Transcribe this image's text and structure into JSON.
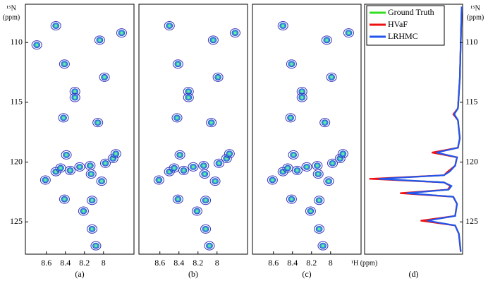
{
  "chart_data": [
    {
      "type": "contour",
      "label": "(a)",
      "xlim": [
        8.82,
        7.68
      ],
      "ylim": [
        106.8,
        127.7
      ],
      "xticks": [
        8.6,
        8.4,
        8.2,
        8
      ],
      "yticks": [
        110,
        115,
        120,
        125
      ],
      "ylabel": [
        "¹⁵N",
        "(ppm)"
      ],
      "x": [
        8.5,
        7.81,
        8.04,
        8.7,
        8.41,
        7.99,
        8.3,
        8.3,
        8.42,
        8.06,
        8.39,
        8.14,
        8.13,
        8.61,
        8.5,
        8.45,
        8.35,
        8.25,
        7.98,
        7.9,
        7.87,
        8.02,
        8.41,
        8.21,
        8.12,
        8.12,
        8.08
      ],
      "y": [
        108.6,
        109.2,
        109.8,
        110.2,
        111.8,
        112.9,
        114.1,
        114.6,
        116.3,
        116.7,
        119.4,
        120.3,
        121.0,
        121.5,
        120.8,
        120.5,
        120.7,
        120.4,
        120.1,
        119.7,
        119.3,
        121.6,
        123.1,
        124.1,
        123.2,
        125.6,
        127.0
      ]
    },
    {
      "type": "contour",
      "label": "(b)",
      "xlim": [
        8.82,
        7.68
      ],
      "ylim": [
        106.8,
        127.7
      ],
      "xticks": [
        8.6,
        8.4,
        8.2,
        8
      ],
      "x": [
        8.5,
        7.81,
        8.04,
        8.41,
        7.99,
        8.3,
        8.3,
        8.42,
        8.06,
        8.39,
        8.14,
        8.13,
        8.61,
        8.5,
        8.45,
        8.35,
        8.25,
        7.98,
        7.9,
        7.87,
        8.02,
        8.41,
        8.21,
        8.12,
        8.12,
        8.08
      ],
      "y": [
        108.6,
        109.2,
        109.8,
        111.8,
        112.9,
        114.1,
        114.6,
        116.3,
        116.7,
        119.4,
        120.3,
        121.0,
        121.5,
        120.8,
        120.5,
        120.7,
        120.4,
        120.1,
        119.7,
        119.3,
        121.6,
        123.1,
        124.1,
        123.2,
        125.6,
        127.0
      ]
    },
    {
      "type": "contour",
      "label": "(c)",
      "xlim": [
        8.82,
        7.68
      ],
      "ylim": [
        106.8,
        127.7
      ],
      "xticks": [
        8.6,
        8.4,
        8.2,
        8
      ],
      "xlabel": "¹H (ppm)",
      "x": [
        8.5,
        7.81,
        8.04,
        8.41,
        7.99,
        8.3,
        8.3,
        8.42,
        8.06,
        8.39,
        8.14,
        8.13,
        8.61,
        8.5,
        8.45,
        8.35,
        8.25,
        7.98,
        7.9,
        7.87,
        8.02,
        8.41,
        8.21,
        8.12,
        8.12,
        8.08
      ],
      "y": [
        108.6,
        109.2,
        109.8,
        111.8,
        112.9,
        114.1,
        114.6,
        116.3,
        116.7,
        119.4,
        120.3,
        121.0,
        121.5,
        120.8,
        120.5,
        120.7,
        120.4,
        120.1,
        119.7,
        119.3,
        121.6,
        123.1,
        124.1,
        123.2,
        125.6,
        127.0
      ]
    },
    {
      "type": "line",
      "label": "(d)",
      "xlim": [
        1.05,
        0
      ],
      "ylim": [
        106.8,
        127.7
      ],
      "yticks": [
        110,
        115,
        120,
        125
      ],
      "ylabel": [
        "¹⁵N",
        "(ppm)"
      ],
      "y": [
        107,
        110,
        113,
        115.5,
        116,
        116.5,
        118,
        118.8,
        119.2,
        119.6,
        120.3,
        120.8,
        121.1,
        121.4,
        121.7,
        122.0,
        122.3,
        122.6,
        122.9,
        123.5,
        124.5,
        124.9,
        125.3,
        126,
        127.5
      ],
      "series": [
        {
          "name": "Ground Truth",
          "color": "#33dd22",
          "values": [
            0.01,
            0.02,
            0.03,
            0.05,
            0.09,
            0.05,
            0.03,
            0.05,
            0.3,
            0.06,
            0.08,
            0.15,
            0.2,
            0.93,
            0.2,
            0.12,
            0.15,
            0.62,
            0.1,
            0.06,
            0.08,
            0.4,
            0.08,
            0.04,
            0.02
          ]
        },
        {
          "name": "HVaF",
          "color": "#ee1111",
          "values": [
            0.01,
            0.02,
            0.03,
            0.05,
            0.1,
            0.05,
            0.03,
            0.05,
            0.33,
            0.06,
            0.08,
            0.16,
            0.2,
            1.0,
            0.2,
            0.13,
            0.16,
            0.67,
            0.1,
            0.06,
            0.08,
            0.45,
            0.08,
            0.04,
            0.02
          ]
        },
        {
          "name": "LRHMC",
          "color": "#2255ee",
          "values": [
            0.01,
            0.02,
            0.03,
            0.05,
            0.09,
            0.05,
            0.03,
            0.05,
            0.28,
            0.06,
            0.08,
            0.14,
            0.2,
            0.9,
            0.2,
            0.12,
            0.15,
            0.6,
            0.1,
            0.06,
            0.08,
            0.38,
            0.08,
            0.04,
            0.02
          ]
        }
      ]
    }
  ]
}
